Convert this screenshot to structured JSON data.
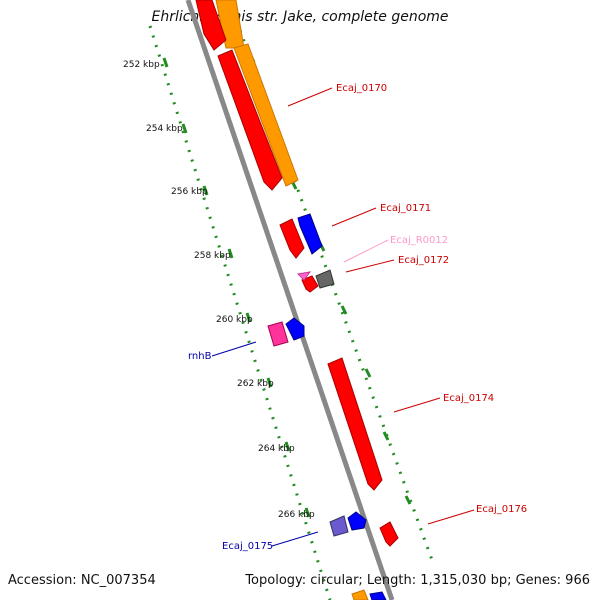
{
  "title": "Ehrlichia canis str. Jake, complete genome",
  "footer": {
    "accession": "Accession: NC_007354",
    "topology": "Topology: circular; Length: 1,315,030 bp; Genes: 966"
  },
  "ruler_ticks": [
    "252 kbp",
    "254 kbp",
    "256 kbp",
    "258 kbp",
    "260 kbp",
    "262 kbp",
    "264 kbp",
    "266 kbp"
  ],
  "gene_labels": [
    {
      "text": "Ecaj_0170",
      "color": "#cc0000"
    },
    {
      "text": "Ecaj_0171",
      "color": "#cc0000"
    },
    {
      "text": "Ecaj_R0012",
      "color": "#ff99cc"
    },
    {
      "text": "Ecaj_0172",
      "color": "#cc0000"
    },
    {
      "text": "rnhB",
      "color": "#0000aa"
    },
    {
      "text": "Ecaj_0174",
      "color": "#cc0000"
    },
    {
      "text": "Ecaj_0176",
      "color": "#cc0000"
    },
    {
      "text": "Ecaj_0175",
      "color": "#0000aa"
    }
  ],
  "colors": {
    "cds": "#ff0000",
    "gene": "#0000ff",
    "orf": "#ff9900",
    "rrna": "#ff3399",
    "misc": "#555555",
    "backbone": "#888888",
    "ticks": "#228b22"
  }
}
